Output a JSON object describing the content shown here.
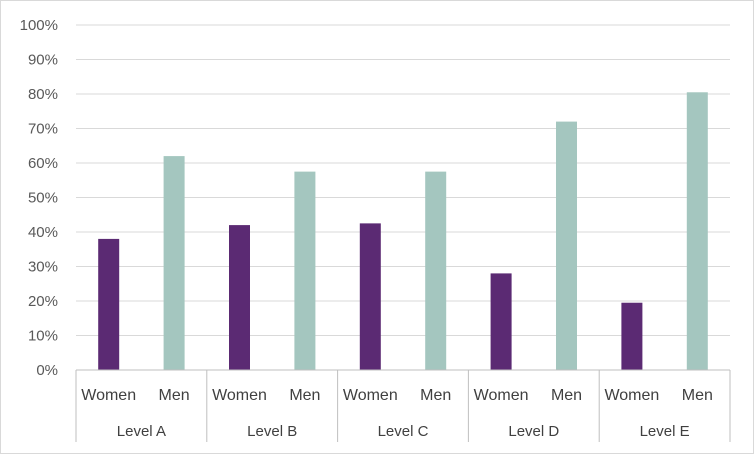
{
  "chart_data": {
    "type": "bar",
    "groups": [
      "Level A",
      "Level B",
      "Level C",
      "Level D",
      "Level E"
    ],
    "subcategories": [
      "Women",
      "Men"
    ],
    "series": [
      {
        "name": "Women",
        "values": [
          38,
          42,
          42.5,
          28,
          19.5
        ]
      },
      {
        "name": "Men",
        "values": [
          62,
          57.5,
          57.5,
          72,
          80.5
        ]
      }
    ],
    "yticks": [
      "0%",
      "10%",
      "20%",
      "30%",
      "40%",
      "50%",
      "60%",
      "70%",
      "80%",
      "90%",
      "100%"
    ],
    "ylim": [
      0,
      100
    ],
    "grid": true,
    "colors": {
      "Women": "#5b2a73",
      "Men": "#a4c6bf",
      "grid": "#d9d9d9",
      "axis": "#bfbfbf"
    }
  }
}
